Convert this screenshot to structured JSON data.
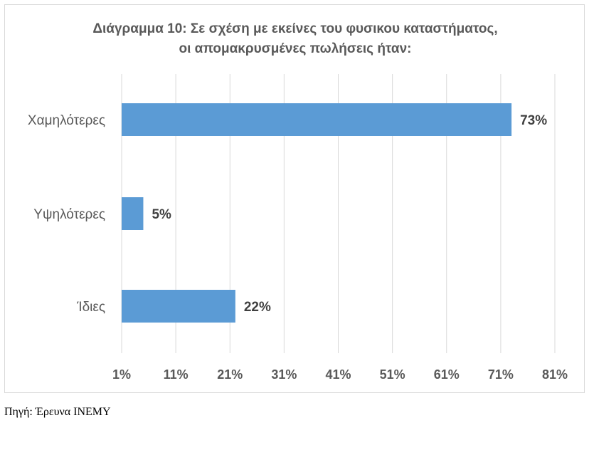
{
  "chart_data": {
    "type": "bar",
    "orientation": "horizontal",
    "title": [
      "Διάγραμμα 10: Σε σχέση με εκείνες του φυσικου καταστήματος,",
      "οι απομακρυσμένες πωλήσεις ήταν:"
    ],
    "categories": [
      "Χαμηλότερες",
      "Υψηλότερες",
      "Ίδιες"
    ],
    "values": [
      73,
      5,
      22
    ],
    "data_labels": [
      "73%",
      "5%",
      "22%"
    ],
    "xlim": [
      1,
      81
    ],
    "xticks": [
      1,
      11,
      21,
      31,
      41,
      51,
      61,
      71,
      81
    ],
    "xtick_labels": [
      "1%",
      "11%",
      "21%",
      "31%",
      "41%",
      "51%",
      "61%",
      "71%",
      "81%"
    ],
    "grid": true,
    "bar_color": "#5b9bd5",
    "xlabel": "",
    "ylabel": ""
  },
  "source": "Πηγή: Έρευνα ΙΝΕΜΥ"
}
